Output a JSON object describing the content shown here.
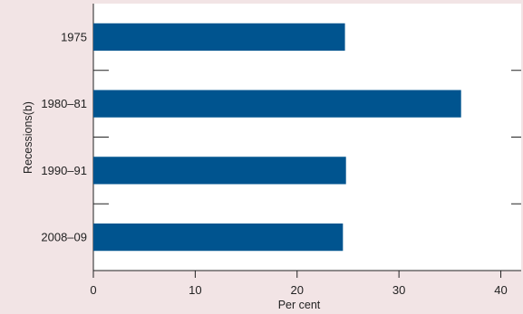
{
  "chart_data": {
    "type": "bar",
    "orientation": "horizontal",
    "categories": [
      "1975",
      "1980–81",
      "1990–91",
      "2008–09"
    ],
    "values": [
      24.7,
      36.1,
      24.8,
      24.5
    ],
    "xlabel": "Per cent",
    "ylabel": "Recessions(b)",
    "xlim": [
      0,
      42
    ],
    "xticks": [
      0,
      10,
      20,
      30,
      40
    ],
    "grid": false,
    "legend": "none",
    "bar_color": "#00548f",
    "background_color": "#f2e4e5",
    "plot_background_color": "#ffffff"
  }
}
